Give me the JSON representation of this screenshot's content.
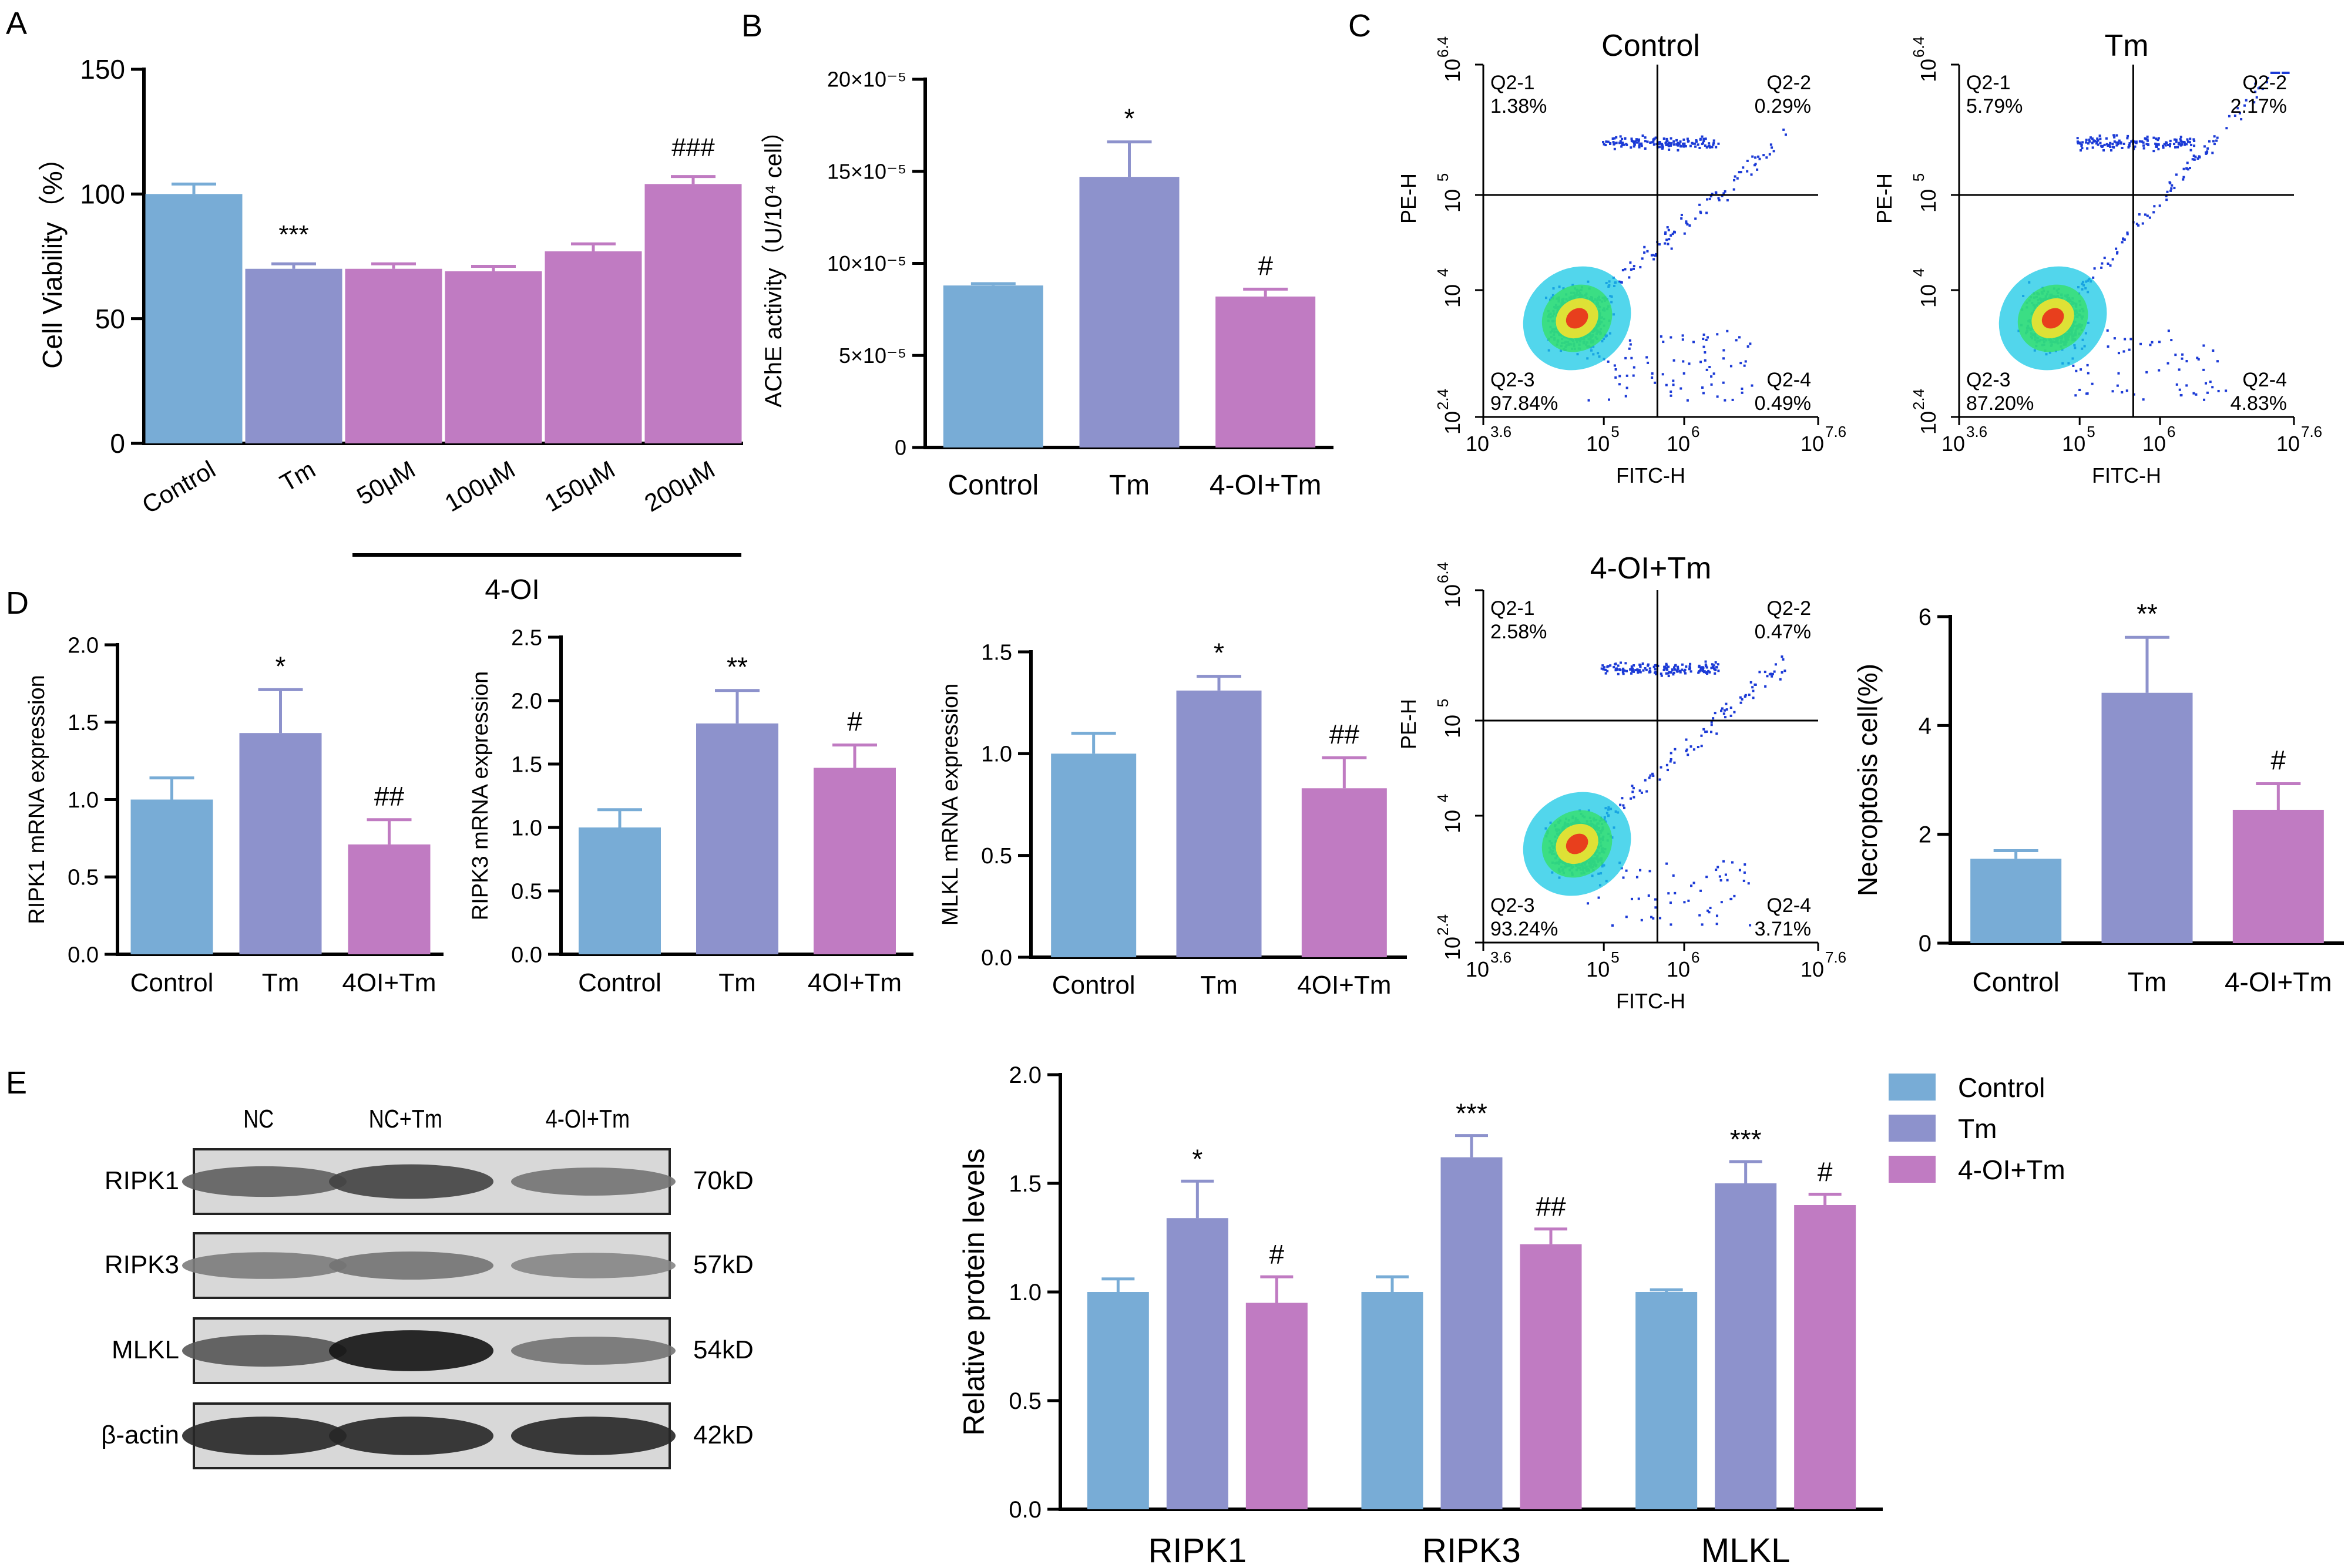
{
  "colors": {
    "control": "#78acd6",
    "tm": "#8d92cc",
    "oi": "#c07bc2",
    "dot": "#1b3ad6"
  },
  "panel_labels": [
    "A",
    "B",
    "C",
    "D",
    "E"
  ],
  "chart_data": [
    {
      "id": "A",
      "type": "bar",
      "ylabel": "Cell Viability（%）",
      "ylim": [
        0,
        150
      ],
      "yticks": [
        0,
        50,
        100,
        150
      ],
      "categories": [
        "Control",
        "Tm",
        "50μM",
        "100μM",
        "150μM",
        "200μM"
      ],
      "group_label": "4-OI",
      "values": [
        100,
        70,
        70,
        69,
        77,
        104
      ],
      "errors": [
        4,
        2,
        2,
        2,
        3,
        3
      ],
      "colors": [
        "control",
        "tm",
        "oi",
        "oi",
        "oi",
        "oi"
      ],
      "annotations": [
        "",
        "***",
        "",
        "",
        "",
        "###"
      ]
    },
    {
      "id": "B",
      "type": "bar",
      "ylabel": "AChE activity（U/10⁴ cell）",
      "ylim": [
        0,
        20
      ],
      "yticks": [
        0,
        5,
        10,
        15,
        20
      ],
      "ytick_labels": [
        "0",
        "5×10⁻⁵",
        "10×10⁻⁵",
        "15×10⁻⁵",
        "20×10⁻⁵"
      ],
      "categories": [
        "Control",
        "Tm",
        "4-OI+Tm"
      ],
      "values": [
        8.8,
        14.7,
        8.2
      ],
      "errors": [
        0.1,
        1.9,
        0.4
      ],
      "colors": [
        "control",
        "tm",
        "oi"
      ],
      "annotations": [
        "",
        "*",
        "#"
      ]
    },
    {
      "id": "D1",
      "type": "bar",
      "ylabel": "RIPK1 mRNA expression",
      "ylim": [
        0,
        2.0
      ],
      "yticks": [
        0,
        0.5,
        1.0,
        1.5,
        2.0
      ],
      "ytick_labels": [
        "0.0",
        "0.5",
        "1.0",
        "1.5",
        "2.0"
      ],
      "categories": [
        "Control",
        "Tm",
        "4OI+Tm"
      ],
      "values": [
        1.0,
        1.43,
        0.71
      ],
      "errors": [
        0.14,
        0.28,
        0.16
      ],
      "colors": [
        "control",
        "tm",
        "oi"
      ],
      "annotations": [
        "",
        "*",
        "##"
      ]
    },
    {
      "id": "D2",
      "type": "bar",
      "ylabel": "RIPK3 mRNA expression",
      "ylim": [
        0,
        2.5
      ],
      "yticks": [
        0,
        0.5,
        1.0,
        1.5,
        2.0,
        2.5
      ],
      "ytick_labels": [
        "0.0",
        "0.5",
        "1.0",
        "1.5",
        "2.0",
        "2.5"
      ],
      "categories": [
        "Control",
        "Tm",
        "4OI+Tm"
      ],
      "values": [
        1.0,
        1.82,
        1.47
      ],
      "errors": [
        0.14,
        0.26,
        0.18
      ],
      "colors": [
        "control",
        "tm",
        "oi"
      ],
      "annotations": [
        "",
        "**",
        "#"
      ]
    },
    {
      "id": "D3",
      "type": "bar",
      "ylabel": "MLKL mRNA expression",
      "ylim": [
        0,
        1.5
      ],
      "yticks": [
        0,
        0.5,
        1.0,
        1.5
      ],
      "ytick_labels": [
        "0.0",
        "0.5",
        "1.0",
        "1.5"
      ],
      "categories": [
        "Control",
        "Tm",
        "4OI+Tm"
      ],
      "values": [
        1.0,
        1.31,
        0.83
      ],
      "errors": [
        0.1,
        0.07,
        0.15
      ],
      "colors": [
        "control",
        "tm",
        "oi"
      ],
      "annotations": [
        "",
        "*",
        "##"
      ]
    },
    {
      "id": "C4",
      "type": "bar",
      "ylabel": "Necroptosis cell(%)",
      "ylim": [
        0,
        6
      ],
      "yticks": [
        0,
        2,
        4,
        6
      ],
      "ytick_labels": [
        "0",
        "2",
        "4",
        "6"
      ],
      "categories": [
        "Control",
        "Tm",
        "4-OI+Tm"
      ],
      "values": [
        1.55,
        4.6,
        2.45
      ],
      "errors": [
        0.15,
        1.02,
        0.48
      ],
      "colors": [
        "control",
        "tm",
        "oi"
      ],
      "annotations": [
        "",
        "**",
        "#"
      ]
    },
    {
      "id": "E2",
      "type": "bar",
      "ylabel": "Relative protein levels",
      "ylim": [
        0,
        2.0
      ],
      "yticks": [
        0,
        0.5,
        1.0,
        1.5,
        2.0
      ],
      "ytick_labels": [
        "0.0",
        "0.5",
        "1.0",
        "1.5",
        "2.0"
      ],
      "categories": [
        "RIPK1",
        "RIPK3",
        "MLKL"
      ],
      "series": [
        {
          "name": "Control",
          "color": "control",
          "values": [
            1.0,
            1.0,
            1.0
          ],
          "errors": [
            0.06,
            0.07,
            0.01
          ],
          "annotations": [
            "",
            "",
            ""
          ]
        },
        {
          "name": "Tm",
          "color": "tm",
          "values": [
            1.34,
            1.62,
            1.5
          ],
          "errors": [
            0.17,
            0.1,
            0.1
          ],
          "annotations": [
            "*",
            "***",
            "***"
          ]
        },
        {
          "name": "4-OI+Tm",
          "color": "oi",
          "values": [
            0.95,
            1.22,
            1.4
          ],
          "errors": [
            0.12,
            0.07,
            0.05
          ],
          "annotations": [
            "#",
            "##",
            "#"
          ]
        }
      ],
      "legend_position": "top-right"
    }
  ],
  "flow_plots": [
    {
      "title": "Control",
      "quadrants": [
        [
          "Q2-1",
          "1.38%"
        ],
        [
          "Q2-2",
          "0.29%"
        ],
        [
          "Q2-3",
          "97.84%"
        ],
        [
          "Q2-4",
          "0.49%"
        ]
      ]
    },
    {
      "title": "Tm",
      "quadrants": [
        [
          "Q2-1",
          "5.79%"
        ],
        [
          "Q2-2",
          "2.17%"
        ],
        [
          "Q2-3",
          "87.20%"
        ],
        [
          "Q2-4",
          "4.83%"
        ]
      ]
    },
    {
      "title": "4-OI+Tm",
      "quadrants": [
        [
          "Q2-1",
          "2.58%"
        ],
        [
          "Q2-2",
          "0.47%"
        ],
        [
          "Q2-3",
          "93.24%"
        ],
        [
          "Q2-4",
          "3.71%"
        ]
      ]
    }
  ],
  "flow_axes": {
    "xlabel": "FITC-H",
    "ylabel": "PE-H",
    "xticks": [
      [
        "10",
        "3.6"
      ],
      [
        "10",
        "5"
      ],
      [
        "10",
        "6"
      ],
      [
        "10",
        "7.6"
      ]
    ],
    "yticks": [
      [
        "10",
        "2.4"
      ],
      [
        "10",
        "4"
      ],
      [
        "10",
        "5"
      ],
      [
        "10",
        "6.4"
      ]
    ]
  },
  "western_blot": {
    "lanes": [
      "NC",
      "NC+Tm",
      "4-OI+Tm"
    ],
    "bands": [
      {
        "protein": "RIPK1",
        "size": "70kD",
        "intensity": [
          0.55,
          0.7,
          0.45
        ]
      },
      {
        "protein": "RIPK3",
        "size": "57kD",
        "intensity": [
          0.4,
          0.45,
          0.35
        ]
      },
      {
        "protein": "MLKL",
        "size": "54kD",
        "intensity": [
          0.6,
          0.95,
          0.45
        ]
      },
      {
        "protein": "β-actin",
        "size": "42kD",
        "intensity": [
          0.85,
          0.85,
          0.85
        ]
      }
    ]
  }
}
